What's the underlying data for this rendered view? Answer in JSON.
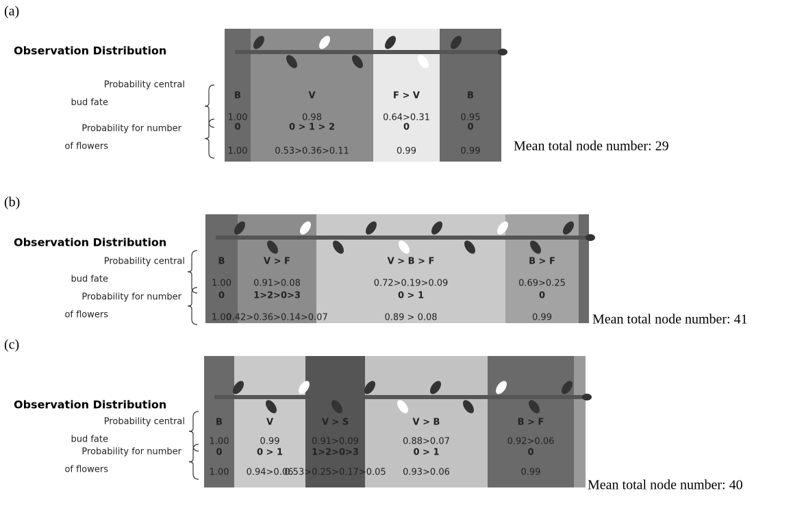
{
  "panels": [
    {
      "label": "(a)",
      "heading": "Observation Distribution",
      "fate_label": [
        "Probability central",
        "bud fate"
      ],
      "flower_label": [
        "Probability for number",
        "of flowers"
      ],
      "segments": [
        {
          "fate": "B",
          "fate_prob": "1.00",
          "flowers": "0",
          "flower_prob": "1.00"
        },
        {
          "fate": "V",
          "fate_prob": "0.98",
          "flowers": "0 > 1 > 2",
          "flower_prob": "0.53>0.36>0.11"
        },
        {
          "fate": "F > V",
          "fate_prob": "0.64>0.31",
          "flowers": "0",
          "flower_prob": "0.99"
        },
        {
          "fate": "B",
          "fate_prob": "0.95",
          "flowers": "0",
          "flower_prob": "0.99"
        }
      ],
      "mean": "Mean total node number: 29"
    },
    {
      "label": "(b)",
      "heading": "Observation Distribution",
      "fate_label": [
        "Probability central",
        "bud fate"
      ],
      "flower_label": [
        "Probability for number",
        "of flowers"
      ],
      "segments": [
        {
          "fate": "B",
          "fate_prob": "1.00",
          "flowers": "0",
          "flower_prob": "1.00"
        },
        {
          "fate": "V > F",
          "fate_prob": "0.91>0.08",
          "flowers": "1>2>0>3",
          "flower_prob": "0.42>0.36>0.14>0.07"
        },
        {
          "fate": "V > B > F",
          "fate_prob": "0.72>0.19>0.09",
          "flowers": "0 > 1",
          "flower_prob": "0.89 > 0.08"
        },
        {
          "fate": "B > F",
          "fate_prob": "0.69>0.25",
          "flowers": "0",
          "flower_prob": "0.99"
        }
      ],
      "mean": "Mean total node number: 41"
    },
    {
      "label": "(c)",
      "heading": "Observation Distribution",
      "fate_label": [
        "Probability central",
        "bud fate"
      ],
      "flower_label": [
        "Probability for number",
        "of flowers"
      ],
      "segments": [
        {
          "fate": "B",
          "fate_prob": "1.00",
          "flowers": "0",
          "flower_prob": "1.00"
        },
        {
          "fate": "V",
          "fate_prob": "0.99",
          "flowers": "0 > 1",
          "flower_prob": "0.94>0.06"
        },
        {
          "fate": "V > S",
          "fate_prob": "0.91>0.09",
          "flowers": "1>2>0>3",
          "flower_prob": "0.53>0.25>0.17>0.05"
        },
        {
          "fate": "V > B",
          "fate_prob": "0.88>0.07",
          "flowers": "0 > 1",
          "flower_prob": "0.93>0.06"
        },
        {
          "fate": "B > F",
          "fate_prob": "0.92>0.06",
          "flowers": "0",
          "flower_prob": "0.99"
        }
      ],
      "mean": "Mean total node number: 40"
    }
  ]
}
